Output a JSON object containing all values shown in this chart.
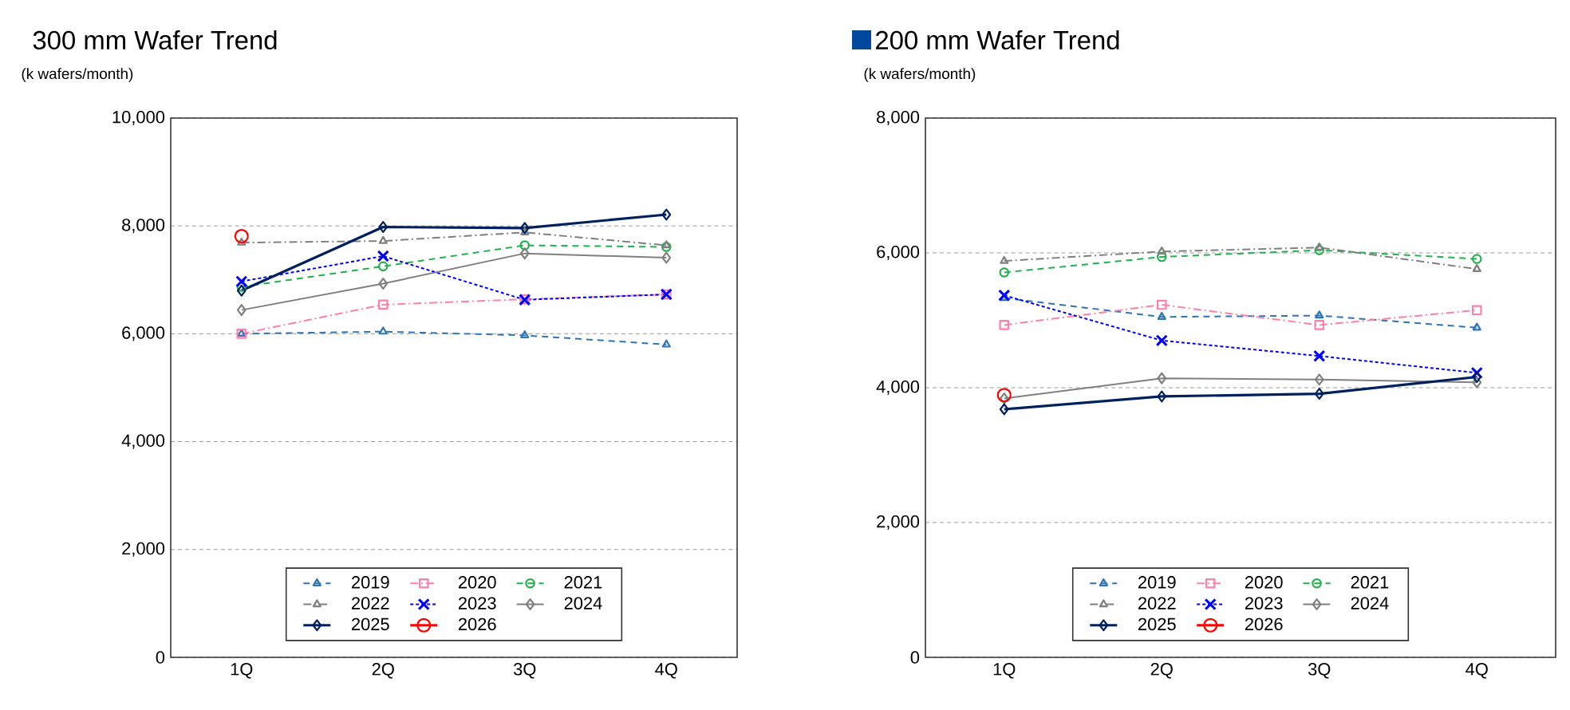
{
  "chart_data": [
    {
      "type": "line",
      "title": "300 mm Wafer Trend",
      "ylabel": "(k wafers/month)",
      "categories": [
        "1Q",
        "2Q",
        "3Q",
        "4Q"
      ],
      "ylim": [
        0,
        10000
      ],
      "yticks": [
        {
          "value": 0,
          "label": "0"
        },
        {
          "value": 2000,
          "label": "2,000"
        },
        {
          "value": 4000,
          "label": "4,000"
        },
        {
          "value": 6000,
          "label": "6,000"
        },
        {
          "value": 8000,
          "label": "8,000"
        },
        {
          "value": 10000,
          "label": "10,000"
        }
      ],
      "grid": "y",
      "legend": "bottom",
      "series": [
        {
          "name": "2019",
          "color": "#2e75b6",
          "marker": "triangle",
          "line_style": "dashed",
          "values": [
            6000,
            6040,
            5970,
            5800
          ]
        },
        {
          "name": "2020",
          "color": "#ff7fa8",
          "marker": "square",
          "line_style": "dashdot",
          "values": [
            6000,
            6540,
            6640,
            6730
          ]
        },
        {
          "name": "2021",
          "color": "#22b14c",
          "marker": "circle",
          "line_style": "dashed",
          "values": [
            6870,
            7250,
            7640,
            7610
          ]
        },
        {
          "name": "2022",
          "color": "#808080",
          "marker": "triangle",
          "line_style": "dashdot",
          "values": [
            7690,
            7720,
            7880,
            7640
          ]
        },
        {
          "name": "2023",
          "color": "#0000ff",
          "marker": "cross",
          "line_style": "dotted",
          "values": [
            6970,
            7440,
            6630,
            6730
          ]
        },
        {
          "name": "2024",
          "color": "#808080",
          "marker": "diamond",
          "line_style": "solid",
          "values": [
            6440,
            6930,
            7490,
            7410
          ]
        },
        {
          "name": "2025",
          "color": "#002060",
          "marker": "diamond",
          "line_style": "solid",
          "values": [
            6800,
            7980,
            7960,
            8210
          ]
        },
        {
          "name": "2026",
          "color": "#ff0000",
          "marker": "circle",
          "line_style": "solid",
          "values": [
            7810,
            null,
            null,
            null
          ]
        }
      ]
    },
    {
      "type": "line",
      "title": "200 mm Wafer Trend",
      "ylabel": "(k wafers/month)",
      "categories": [
        "1Q",
        "2Q",
        "3Q",
        "4Q"
      ],
      "ylim": [
        0,
        8000
      ],
      "yticks": [
        {
          "value": 0,
          "label": "0"
        },
        {
          "value": 2000,
          "label": "2,000"
        },
        {
          "value": 4000,
          "label": "4,000"
        },
        {
          "value": 6000,
          "label": "6,000"
        },
        {
          "value": 8000,
          "label": "8,000"
        }
      ],
      "grid": "y",
      "legend": "bottom",
      "series": [
        {
          "name": "2019",
          "color": "#2e75b6",
          "marker": "triangle",
          "line_style": "dashed",
          "values": [
            5330,
            5050,
            5070,
            4890
          ]
        },
        {
          "name": "2020",
          "color": "#ff7fa8",
          "marker": "square",
          "line_style": "dashdot",
          "values": [
            4930,
            5230,
            4930,
            5150
          ]
        },
        {
          "name": "2021",
          "color": "#22b14c",
          "marker": "circle",
          "line_style": "dashed",
          "values": [
            5710,
            5940,
            6040,
            5910
          ]
        },
        {
          "name": "2022",
          "color": "#808080",
          "marker": "triangle",
          "line_style": "dashdot",
          "values": [
            5880,
            6020,
            6080,
            5760
          ]
        },
        {
          "name": "2023",
          "color": "#0000ff",
          "marker": "cross",
          "line_style": "dotted",
          "values": [
            5370,
            4700,
            4470,
            4220
          ]
        },
        {
          "name": "2024",
          "color": "#808080",
          "marker": "diamond",
          "line_style": "solid",
          "values": [
            3840,
            4140,
            4120,
            4080
          ]
        },
        {
          "name": "2025",
          "color": "#002060",
          "marker": "diamond",
          "line_style": "solid",
          "values": [
            3680,
            3870,
            3910,
            4160
          ]
        },
        {
          "name": "2026",
          "color": "#ff0000",
          "marker": "circle",
          "line_style": "solid",
          "values": [
            3890,
            null,
            null,
            null
          ]
        }
      ]
    }
  ]
}
